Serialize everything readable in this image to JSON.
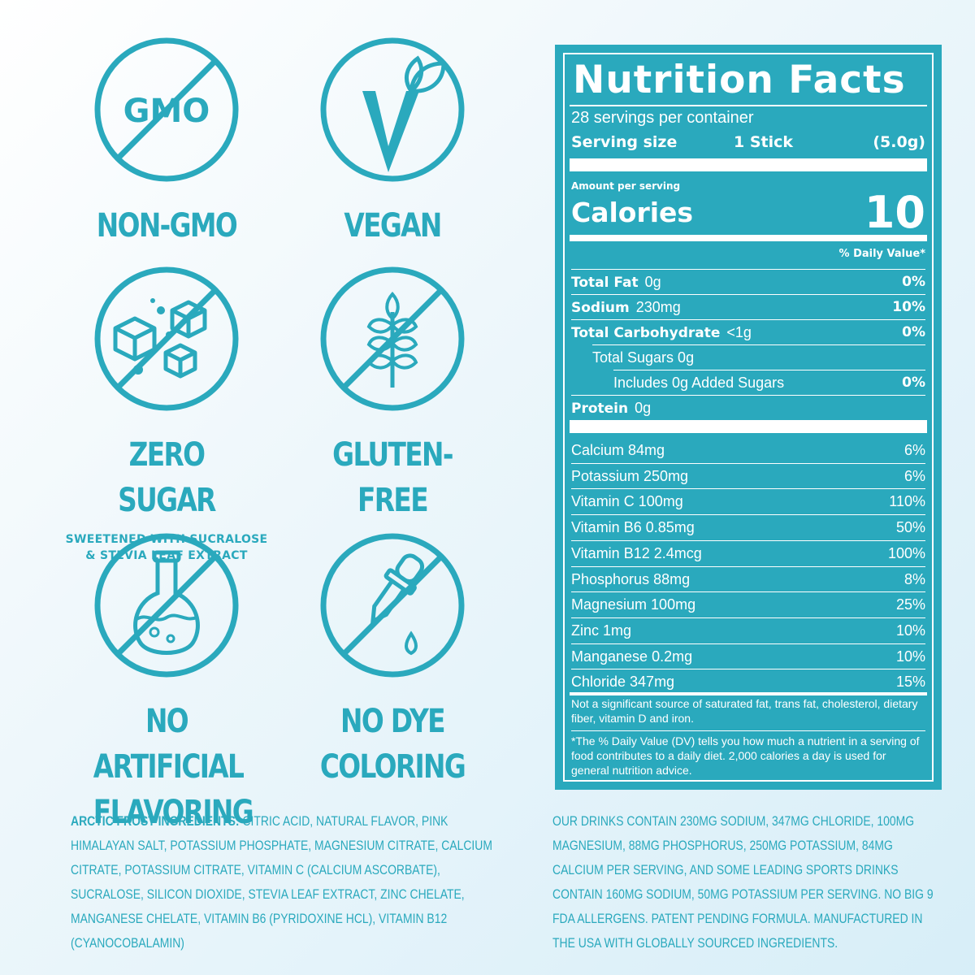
{
  "badges": {
    "non_gmo": {
      "icon_text": "GMO",
      "label": "NON-GMO"
    },
    "vegan": {
      "label": "VEGAN"
    },
    "zero_sugar": {
      "label": "ZERO SUGAR",
      "sub1": "SWEETENED WITH SUCRALOSE",
      "sub2": "& STEVIA LEAF EXTRACT"
    },
    "gluten_free": {
      "label": "GLUTEN-FREE"
    },
    "no_artificial": {
      "label1": "NO ARTIFICIAL",
      "label2": "FLAVORING"
    },
    "no_dye": {
      "label1": "NO DYE",
      "label2": "COLORING"
    }
  },
  "nutrition": {
    "title": "Nutrition Facts",
    "servings": "28 servings per container",
    "serving_size_label": "Serving size",
    "serving_size_value": "1 Stick",
    "serving_size_weight": "(5.0g)",
    "amount_per_serving": "Amount per serving",
    "calories_label": "Calories",
    "calories_value": "10",
    "daily_value_header": "% Daily Value*",
    "macros": [
      {
        "name": "Total Fat",
        "amount": "0g",
        "pct": "0%"
      },
      {
        "name": "Sodium",
        "amount": "230mg",
        "pct": "10%"
      },
      {
        "name": "Total Carbohydrate",
        "amount": "<1g",
        "pct": "0%"
      },
      {
        "name": "",
        "amount": "Total Sugars 0g",
        "pct": ""
      },
      {
        "name": "",
        "amount": "Includes 0g Added Sugars",
        "pct": "0%"
      },
      {
        "name": "Protein",
        "amount": "0g",
        "pct": ""
      }
    ],
    "micros": [
      {
        "name": "Calcium 84mg",
        "pct": "6%"
      },
      {
        "name": "Potassium 250mg",
        "pct": "6%"
      },
      {
        "name": "Vitamin C 100mg",
        "pct": "110%"
      },
      {
        "name": "Vitamin B6 0.85mg",
        "pct": "50%"
      },
      {
        "name": "Vitamin B12 2.4mcg",
        "pct": "100%"
      },
      {
        "name": "Phosphorus 88mg",
        "pct": "8%"
      },
      {
        "name": "Magnesium 100mg",
        "pct": "25%"
      },
      {
        "name": "Zinc 1mg",
        "pct": "10%"
      },
      {
        "name": "Manganese 0.2mg",
        "pct": "10%"
      },
      {
        "name": "Chloride 347mg",
        "pct": "15%"
      }
    ],
    "note": "Not a significant source of saturated fat, trans fat, cholesterol, dietary fiber, vitamin D and iron.",
    "footnote": "*The % Daily Value (DV) tells you how much a nutrient in a serving of food contributes to a daily diet. 2,000 calories a day is used for general nutrition advice."
  },
  "ingredients": {
    "heading": "ARCTIC FROST INGREDIENTS:",
    "text": "CITRIC ACID, NATURAL FLAVOR, PINK HIMALAYAN SALT, POTASSIUM PHOSPHATE, MAGNESIUM CITRATE, CALCIUM CITRATE, POTASSIUM CITRATE, VITAMIN C (CALCIUM ASCORBATE), SUCRALOSE, SILICON DIOXIDE, STEVIA LEAF EXTRACT, ZINC CHELATE, MANGANESE CHELATE, VITAMIN B6 (PYRIDOXINE HCL), VITAMIN B12 (CYANOCOBALAMIN)"
  },
  "claims": {
    "text": "OUR DRINKS CONTAIN 230MG SODIUM, 347MG CHLORIDE, 100MG MAGNESIUM, 88MG PHOSPHORUS, 250MG POTASSIUM, 84MG CALCIUM PER SERVING, AND SOME LEADING SPORTS DRINKS CONTAIN 160MG SODIUM, 50MG POTASSIUM PER SERVING. NO BIG 9 FDA ALLERGENS. PATENT PENDING FORMULA. MANUFACTURED IN THE USA WITH GLOBALLY SOURCED INGREDIENTS."
  },
  "colors": {
    "accent": "#2aa9bd",
    "panel_text": "#ffffff"
  }
}
